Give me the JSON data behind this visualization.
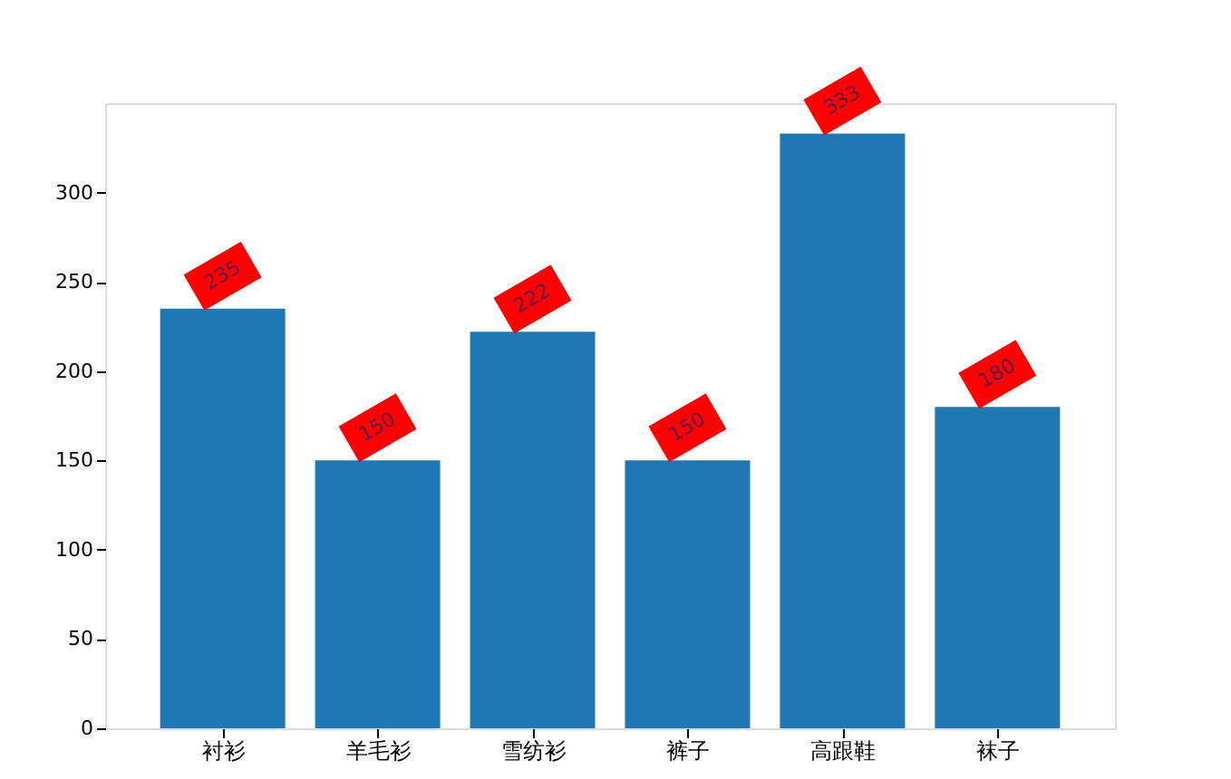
{
  "chart_data": {
    "type": "bar",
    "categories": [
      "衬衫",
      "羊毛衫",
      "雪纺衫",
      "裤子",
      "高跟鞋",
      "袜子"
    ],
    "values": [
      235,
      150,
      222,
      150,
      333,
      180
    ],
    "color": "#1f77b4",
    "ylim": [
      0,
      350
    ],
    "yticks": [
      0,
      50,
      100,
      150,
      200,
      250,
      300
    ],
    "grid": false,
    "data_labels": true
  }
}
